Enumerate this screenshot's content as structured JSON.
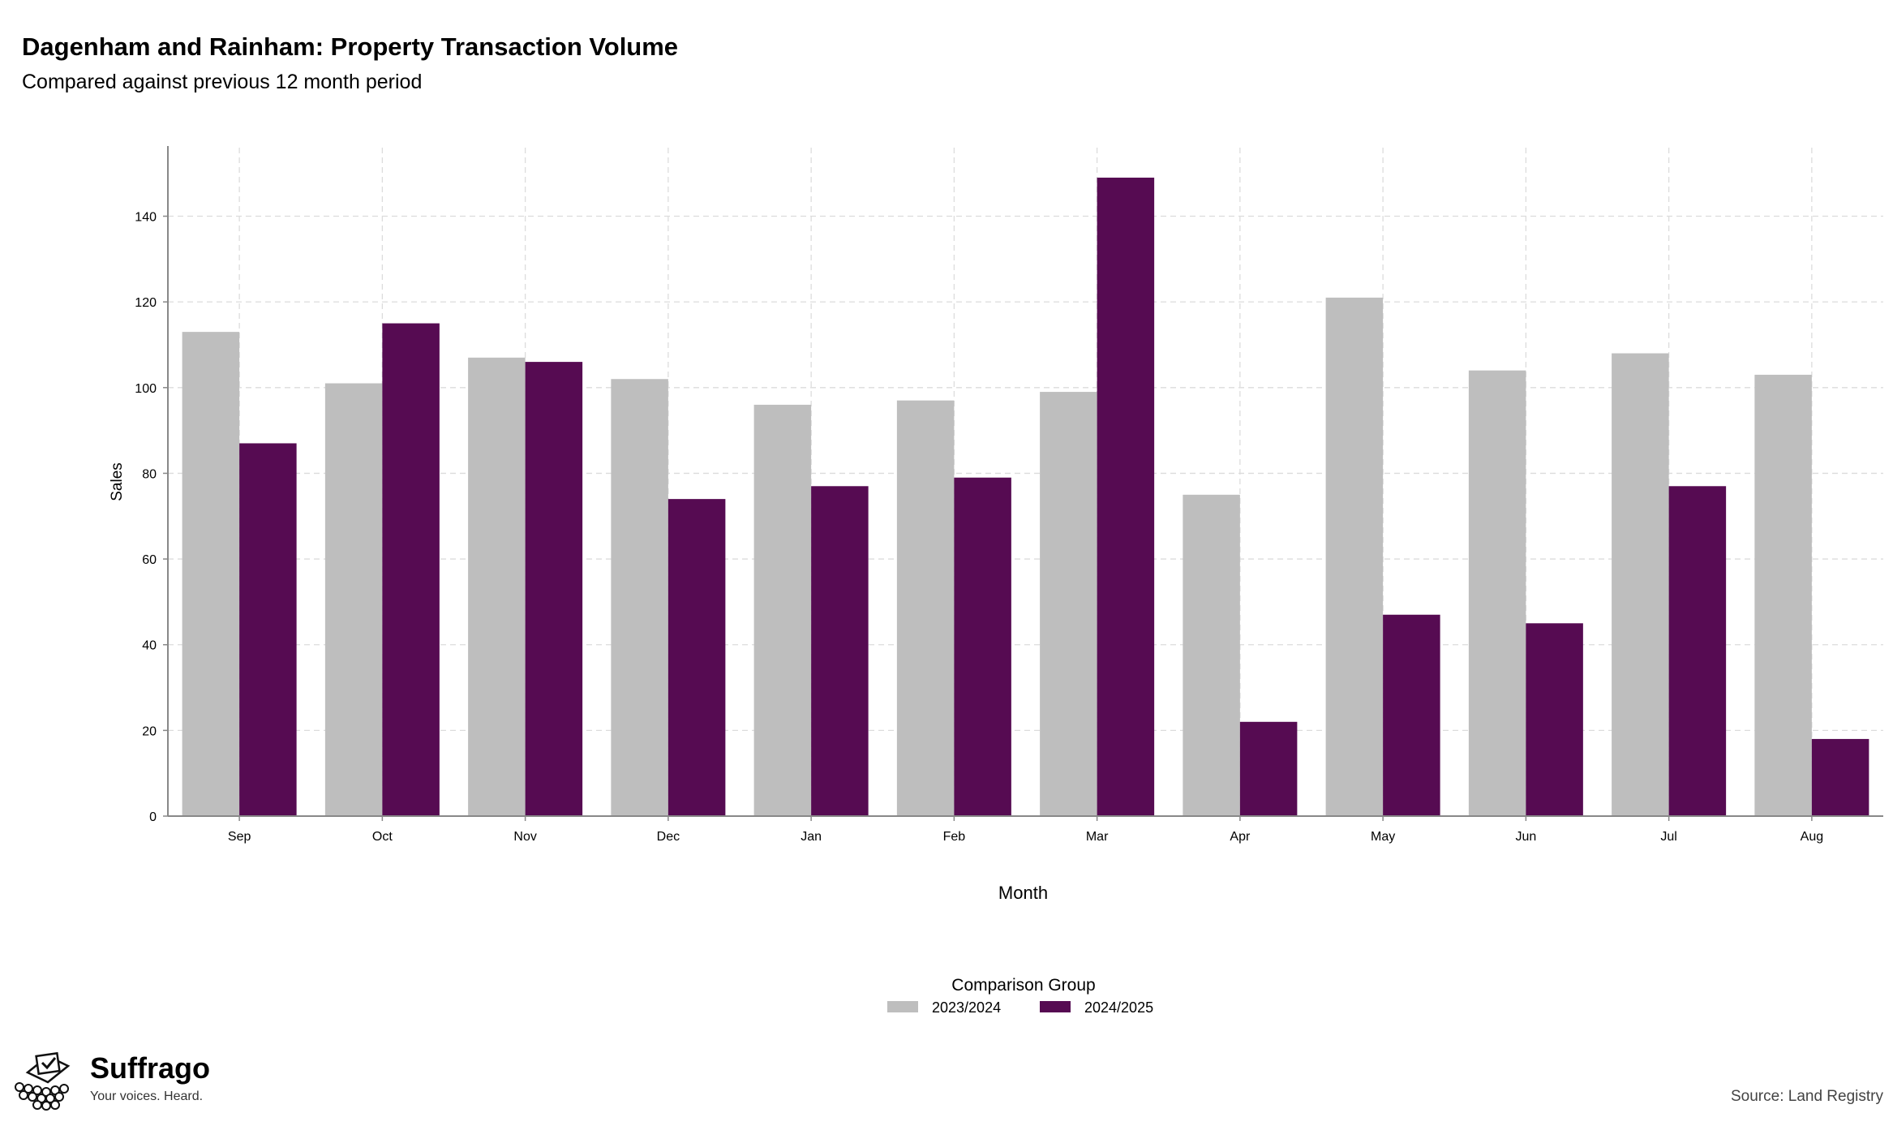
{
  "title": "Dagenham and Rainham: Property Transaction Volume",
  "subtitle": "Compared against previous 12 month period",
  "brand": {
    "name": "Suffrago",
    "tagline": "Your voices. Heard."
  },
  "source": "Source: Land Registry",
  "colors": {
    "series_2023_2024": "#bebebe",
    "series_2024_2025": "#560b52",
    "grid": "#dcdcdc",
    "axis": "#888888"
  },
  "chart_data": {
    "type": "bar",
    "title": "Dagenham and Rainham: Property Transaction Volume",
    "subtitle": "Compared against previous 12 month period",
    "xlabel": "Month",
    "ylabel": "Sales",
    "categories": [
      "Sep",
      "Oct",
      "Nov",
      "Dec",
      "Jan",
      "Feb",
      "Mar",
      "Apr",
      "May",
      "Jun",
      "Jul",
      "Aug"
    ],
    "ylim": [
      0,
      156
    ],
    "yticks": [
      0,
      20,
      40,
      60,
      80,
      100,
      120,
      140
    ],
    "grid": true,
    "legend": {
      "title": "Comparison Group",
      "placement": "bottom-center"
    },
    "series": [
      {
        "name": "2023/2024",
        "values": [
          113,
          101,
          107,
          102,
          96,
          97,
          99,
          75,
          121,
          104,
          108,
          103
        ]
      },
      {
        "name": "2024/2025",
        "values": [
          87,
          115,
          106,
          74,
          77,
          79,
          149,
          22,
          47,
          45,
          77,
          18
        ]
      }
    ]
  }
}
